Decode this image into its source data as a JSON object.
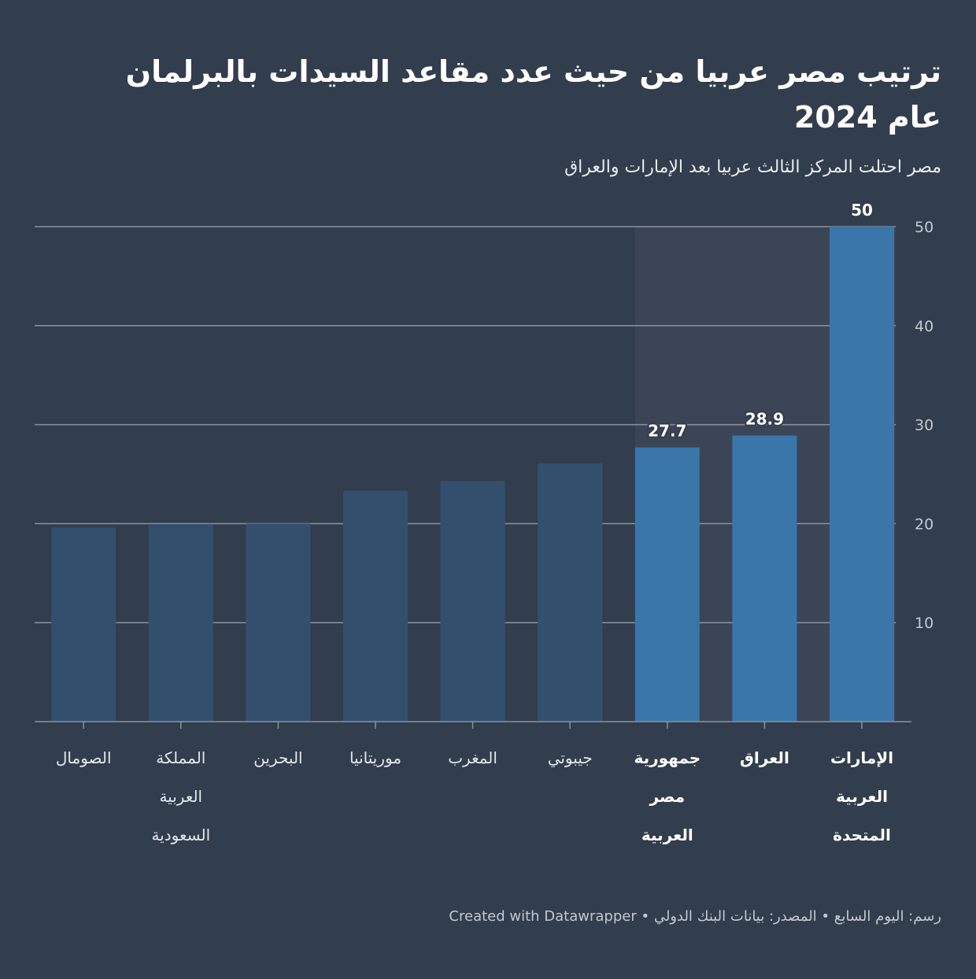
{
  "title": "ترتيب مصر عربيا من حيث عدد مقاعد السيدات بالبرلمان عام 2024",
  "subtitle": "مصر احتلت المركز الثالث عربيا بعد الإمارات والعراق",
  "footer": {
    "credit": "رسم: اليوم السابع",
    "separator1": " • ",
    "source": "المصدر: بيانات البنك الدولي",
    "separator2": " • ",
    "tool": "Created with Datawrapper"
  },
  "colors": {
    "background": "#323d4d",
    "bar_default": "#32506e",
    "bar_highlight": "#3a76aa",
    "highlight_band": "#3b4556",
    "gridline": "#8a929c",
    "axis_text": "#c3c9d1"
  },
  "chart_data": {
    "type": "bar",
    "categories": [
      [
        "الإمارات",
        "العربية",
        "المتحدة"
      ],
      [
        "العراق"
      ],
      [
        "جمهورية",
        "مصر",
        "العربية"
      ],
      [
        "جيبوتي"
      ],
      [
        "المغرب"
      ],
      [
        "موريتانيا"
      ],
      [
        "البحرين"
      ],
      [
        "المملكة",
        "العربية",
        "السعودية"
      ],
      [
        "الصومال"
      ]
    ],
    "values": [
      50,
      28.9,
      27.7,
      26.1,
      24.3,
      23.3,
      20.0,
      19.9,
      19.6
    ],
    "highlighted": [
      true,
      true,
      true,
      false,
      false,
      false,
      false,
      false,
      false
    ],
    "data_labels": [
      "50",
      "28.9",
      "27.7",
      "",
      "",
      "",
      "",
      "",
      ""
    ],
    "yticks": [
      10,
      20,
      30,
      40,
      50
    ],
    "ylim": [
      0,
      50
    ],
    "y_axis_position": "right",
    "grid": true,
    "direction": "rtl"
  }
}
